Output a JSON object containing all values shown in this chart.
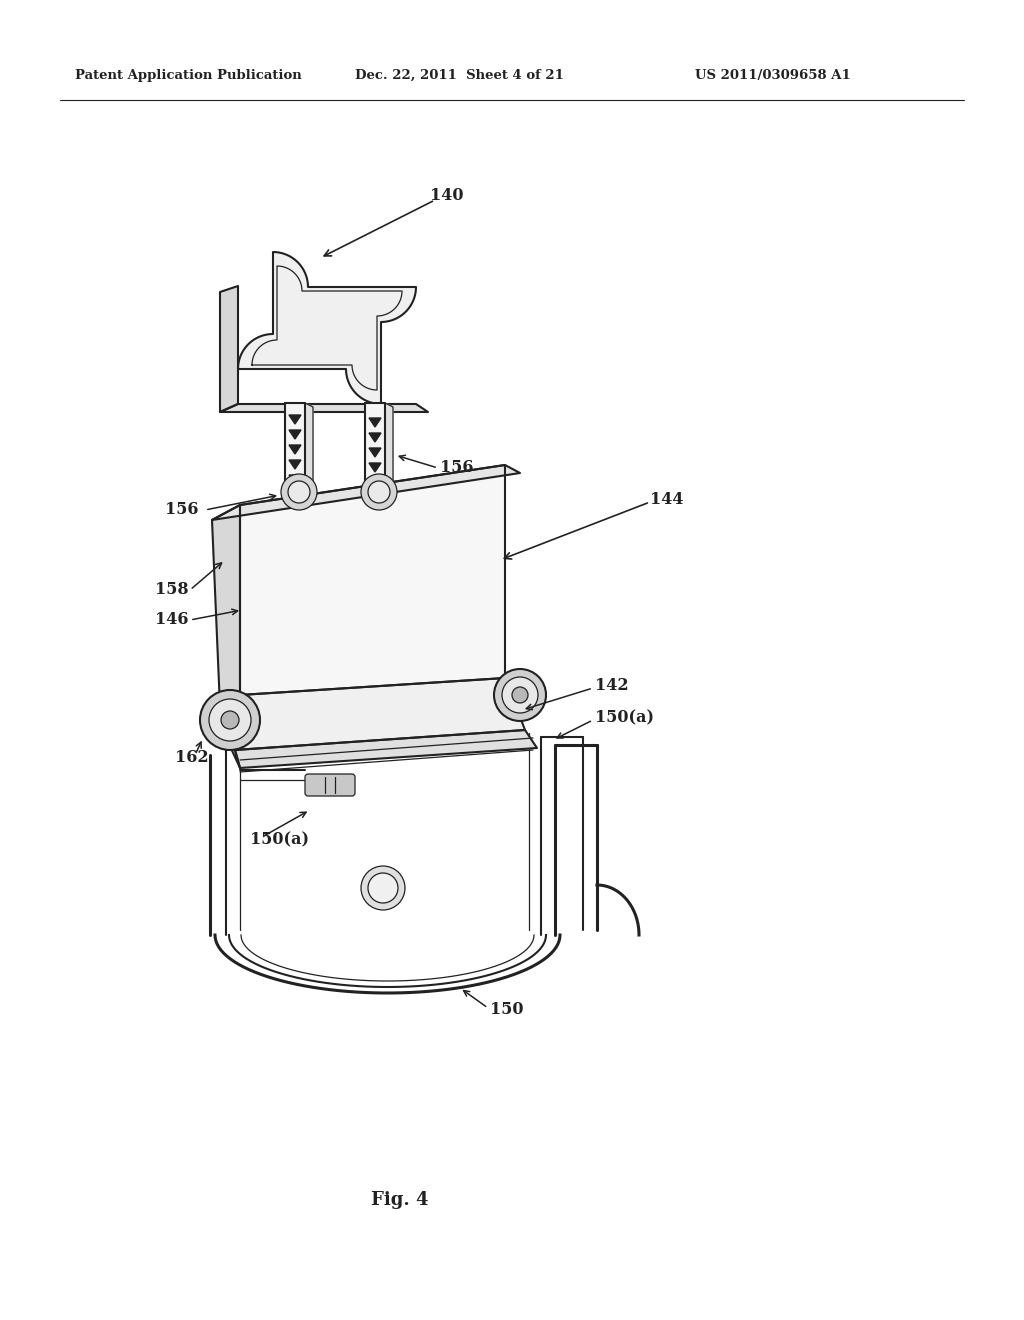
{
  "background_color": "#ffffff",
  "line_color": "#222222",
  "header_left": "Patent Application Publication",
  "header_center": "Dec. 22, 2011  Sheet 4 of 21",
  "header_right": "US 2011/0309658 A1",
  "fig_label": "Fig. 4"
}
